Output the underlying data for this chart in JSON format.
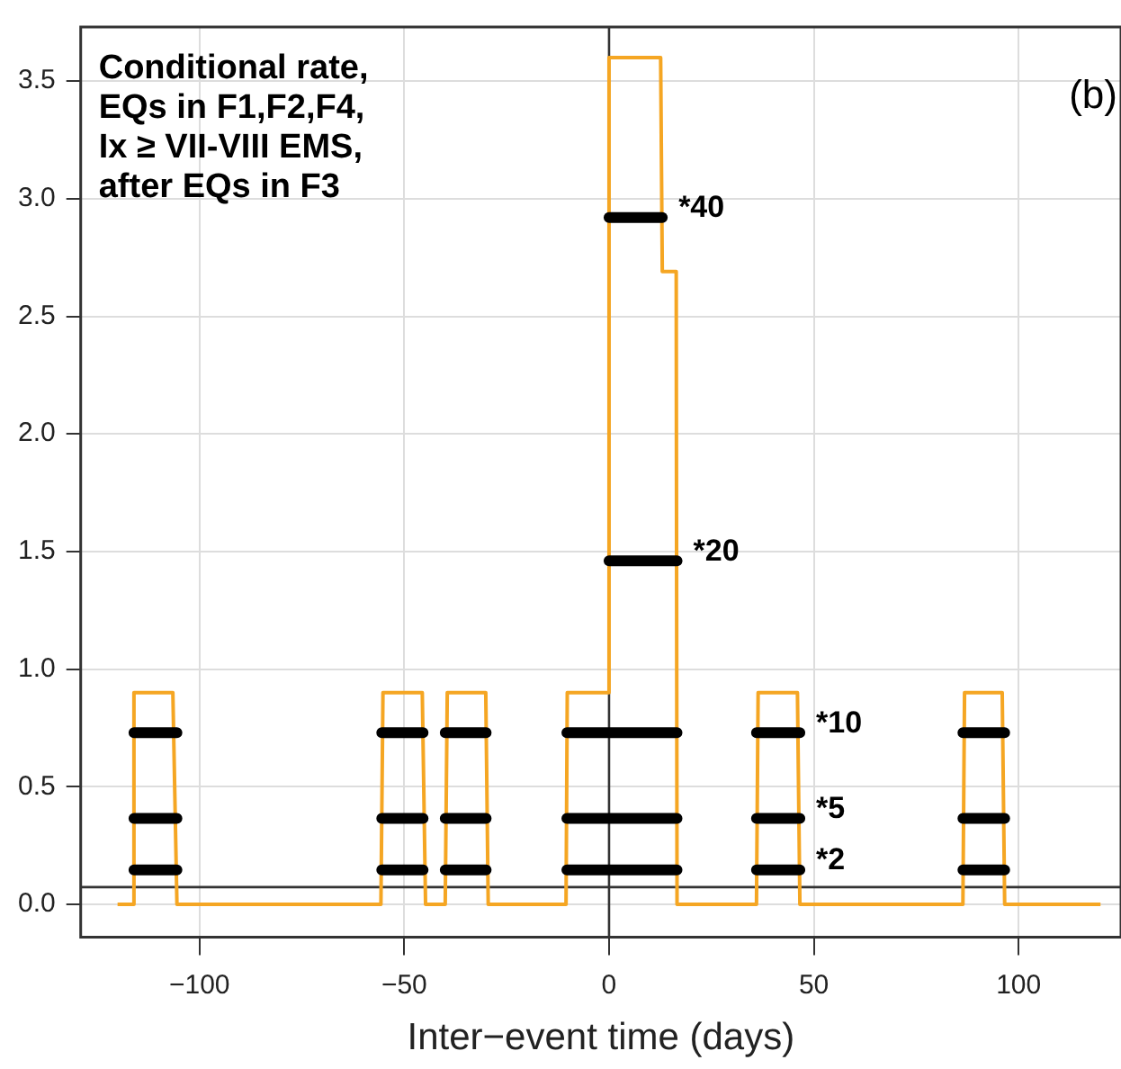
{
  "chart_data": {
    "type": "line",
    "title": "Conditional rate,\nEQs in F1,F2,F4,\nIx ≥ VII-VIII EMS,\nafter EQs in F3",
    "xlabel": "Inter−event time (days)",
    "xlim": [
      -129,
      125
    ],
    "ylim": [
      -0.14,
      3.73
    ],
    "xticks": [
      {
        "value": -100,
        "label": "−100"
      },
      {
        "value": -50,
        "label": "−50"
      },
      0,
      50,
      100
    ],
    "yticks": [
      {
        "value": 0,
        "label": "0.0"
      },
      0.5,
      {
        "value": 1,
        "label": "1.0"
      },
      1.5,
      {
        "value": 2,
        "label": "2.0"
      },
      2.5,
      {
        "value": 3,
        "label": "3.0"
      },
      3.5
    ],
    "grid": true,
    "legend": false,
    "marker": "none",
    "line_style": "solid",
    "series": [
      {
        "color": "#f5a623",
        "x": [
          -120,
          -116,
          -116,
          -106.5,
          -105.5,
          -55.7,
          -55.2,
          -45.6,
          -44.8,
          -40,
          -39.5,
          -30.1,
          -29.5,
          -10.5,
          -10.2,
          0,
          0,
          12.6,
          13,
          16.4,
          16.6,
          36,
          36.4,
          46,
          46.6,
          86.4,
          86.8,
          96,
          96.6,
          120
        ],
        "values": [
          0,
          0,
          0.9,
          0.9,
          0,
          0,
          0.9,
          0.9,
          0,
          0,
          0.9,
          0.9,
          0,
          0,
          0.9,
          0.9,
          3.6,
          3.6,
          2.69,
          2.69,
          0,
          0,
          0.9,
          0.9,
          0,
          0,
          0.9,
          0.9,
          0,
          0
        ]
      },
      {
        "color": "#000000",
        "x": [
          -116,
          -105.5,
          -80,
          -55.5,
          -45.4,
          -42,
          -40,
          -30,
          -20,
          -10.3,
          16.6,
          25,
          36,
          46.6,
          70,
          86.4,
          96.6
        ],
        "values": [
          0.146,
          0.146,
          null,
          0.146,
          0.146,
          null,
          0.146,
          0.146,
          null,
          0.146,
          0.146,
          null,
          0.146,
          0.146,
          null,
          0.146,
          0.146
        ]
      },
      {
        "color": "#000000",
        "x": [
          -116,
          -105.5,
          -80,
          -55.5,
          -45.4,
          -42,
          -40,
          -30,
          -20,
          -10.3,
          16.6,
          25,
          36,
          46.6,
          70,
          86.4,
          96.6
        ],
        "values": [
          0.365,
          0.365,
          null,
          0.365,
          0.365,
          null,
          0.365,
          0.365,
          null,
          0.365,
          0.365,
          null,
          0.365,
          0.365,
          null,
          0.365,
          0.365
        ]
      },
      {
        "color": "#000000",
        "x": [
          -116,
          -105.5,
          -80,
          -55.5,
          -45.4,
          -42,
          -40,
          -30,
          -20,
          -10.3,
          16.6,
          25,
          36,
          46.6,
          70,
          86.4,
          96.6
        ],
        "values": [
          0.73,
          0.73,
          null,
          0.73,
          0.73,
          null,
          0.73,
          0.73,
          null,
          0.73,
          0.73,
          null,
          0.73,
          0.73,
          null,
          0.73,
          0.73
        ]
      },
      {
        "color": "#000000",
        "x": [
          0,
          16.6
        ],
        "values": [
          1.46,
          1.46
        ]
      },
      {
        "color": "#000000",
        "x": [
          0,
          13
        ],
        "values": [
          2.92,
          2.92
        ]
      }
    ],
    "ref_lines": [
      {
        "axis": "x",
        "value": 0,
        "color": "#333333"
      },
      {
        "axis": "y",
        "value": 0.073,
        "color": "#333333"
      }
    ],
    "annotations": [
      {
        "text": "*40",
        "x": 13,
        "y": 2.92
      },
      {
        "text": "*20",
        "x": 16.6,
        "y": 1.46
      },
      {
        "text": "*10",
        "x": 46.6,
        "y": 0.73
      },
      {
        "text": "*5",
        "x": 46.6,
        "y": 0.365
      },
      {
        "text": "*2",
        "x": 46.6,
        "y": 0.146
      },
      "(b)"
    ]
  }
}
